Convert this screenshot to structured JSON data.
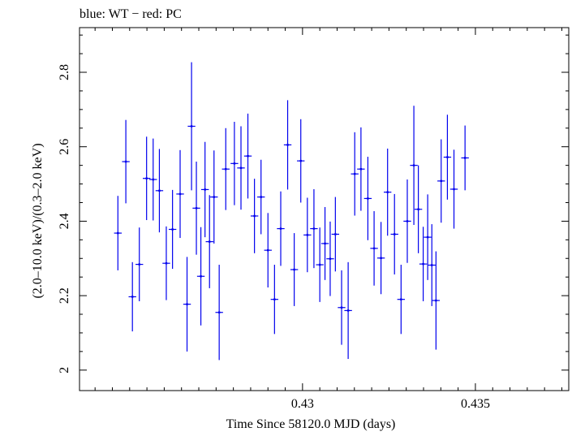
{
  "chart_data": {
    "type": "scatter",
    "title": "blue: WT − red: PC",
    "xlabel": "Time Since 58120.0 MJD (days)",
    "ylabel": "(2.0–10.0 keV)/(0.3–2.0 keV)",
    "xlim": [
      0.42355,
      0.4377
    ],
    "ylim": [
      1.945,
      2.92
    ],
    "x_ticks": [
      0.43,
      0.435
    ],
    "x_tick_labels": [
      "0.43",
      "0.435"
    ],
    "y_ticks": [
      2.0,
      2.2,
      2.4,
      2.6,
      2.8
    ],
    "y_tick_labels": [
      "2",
      "2.2",
      "2.4",
      "2.6",
      "2.8"
    ],
    "grid": false,
    "colors": {
      "series": "#0000ee",
      "axes": "#000000",
      "background": "#ffffff"
    },
    "series": [
      {
        "name": "WT",
        "color": "#0000ee",
        "x_err": 0.00011,
        "points": [
          [
            0.42466,
            2.368,
            0.1
          ],
          [
            0.42489,
            2.56,
            0.112
          ],
          [
            0.42508,
            2.197,
            0.093
          ],
          [
            0.42528,
            2.284,
            0.099
          ],
          [
            0.42549,
            2.515,
            0.112
          ],
          [
            0.42568,
            2.512,
            0.11
          ],
          [
            0.42586,
            2.482,
            0.112
          ],
          [
            0.42606,
            2.287,
            0.099
          ],
          [
            0.42624,
            2.378,
            0.106
          ],
          [
            0.42646,
            2.473,
            0.118
          ],
          [
            0.42666,
            2.177,
            0.127
          ],
          [
            0.42679,
            2.655,
            0.172
          ],
          [
            0.42693,
            2.435,
            0.125
          ],
          [
            0.42706,
            2.252,
            0.132
          ],
          [
            0.42718,
            2.485,
            0.128
          ],
          [
            0.42731,
            2.345,
            0.125
          ],
          [
            0.42744,
            2.465,
            0.125
          ],
          [
            0.42759,
            2.155,
            0.128
          ],
          [
            0.42778,
            2.54,
            0.11
          ],
          [
            0.42803,
            2.555,
            0.112
          ],
          [
            0.42822,
            2.543,
            0.112
          ],
          [
            0.42842,
            2.575,
            0.114
          ],
          [
            0.42861,
            2.414,
            0.1
          ],
          [
            0.4288,
            2.465,
            0.1
          ],
          [
            0.429,
            2.322,
            0.1
          ],
          [
            0.42919,
            2.19,
            0.093
          ],
          [
            0.42937,
            2.38,
            0.1
          ],
          [
            0.42957,
            2.605,
            0.12
          ],
          [
            0.42976,
            2.27,
            0.098
          ],
          [
            0.42995,
            2.562,
            0.112
          ],
          [
            0.43014,
            2.363,
            0.1
          ],
          [
            0.43033,
            2.38,
            0.106
          ],
          [
            0.4305,
            2.283,
            0.1
          ],
          [
            0.43065,
            2.34,
            0.098
          ],
          [
            0.4308,
            2.299,
            0.1
          ],
          [
            0.43095,
            2.365,
            0.1
          ],
          [
            0.43113,
            2.168,
            0.1
          ],
          [
            0.43132,
            2.16,
            0.13
          ],
          [
            0.43151,
            2.527,
            0.112
          ],
          [
            0.43169,
            2.54,
            0.112
          ],
          [
            0.43189,
            2.461,
            0.112
          ],
          [
            0.43207,
            2.327,
            0.1
          ],
          [
            0.43227,
            2.301,
            0.097
          ],
          [
            0.43246,
            2.478,
            0.117
          ],
          [
            0.43266,
            2.365,
            0.108
          ],
          [
            0.43285,
            2.19,
            0.093
          ],
          [
            0.43303,
            2.4,
            0.112
          ],
          [
            0.43322,
            2.55,
            0.16
          ],
          [
            0.43335,
            2.432,
            0.118
          ],
          [
            0.43349,
            2.285,
            0.1
          ],
          [
            0.43362,
            2.357,
            0.115
          ],
          [
            0.43374,
            2.282,
            0.11
          ],
          [
            0.43386,
            2.187,
            0.132
          ],
          [
            0.43401,
            2.508,
            0.112
          ],
          [
            0.43419,
            2.572,
            0.114
          ],
          [
            0.43438,
            2.486,
            0.106
          ],
          [
            0.4347,
            2.57,
            0.087
          ]
        ]
      }
    ]
  }
}
